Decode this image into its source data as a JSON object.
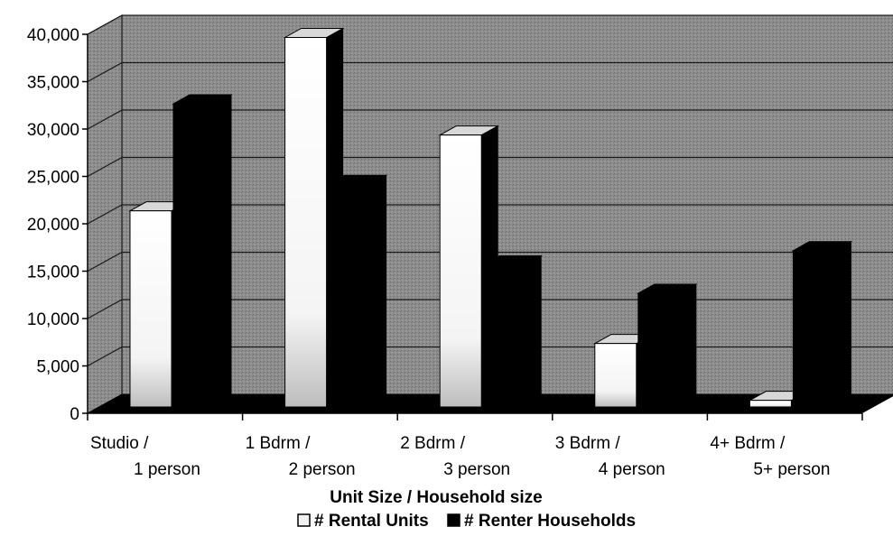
{
  "chart_data": {
    "type": "bar",
    "style": "3d-clustered-column",
    "categories": [
      [
        "Studio /",
        "1 person"
      ],
      [
        "1 Bdrm /",
        "2 person"
      ],
      [
        "2 Bdrm /",
        "3 person"
      ],
      [
        "3 Bdrm /",
        "4 person"
      ],
      [
        "4+ Bdrm /",
        "5+ person"
      ]
    ],
    "series": [
      {
        "name": "# Rental Units",
        "values": [
          20700,
          39000,
          28700,
          6700,
          700
        ],
        "color": "#f2f2f2"
      },
      {
        "name": "# Renter Households",
        "values": [
          32000,
          23500,
          15000,
          12000,
          16500
        ],
        "color": "#000000"
      }
    ],
    "xlabel": "Unit Size / Household size",
    "ylabel": "",
    "ylim": [
      0,
      40000
    ],
    "yticks": [
      0,
      5000,
      10000,
      15000,
      20000,
      25000,
      30000,
      35000,
      40000
    ],
    "ytick_labels": [
      "0",
      "5,000",
      "10,000",
      "15,000",
      "20,000",
      "25,000",
      "30,000",
      "35,000",
      "40,000"
    ],
    "grid": true,
    "legend": "bottom",
    "colors": {
      "wall": "#8c8c8c",
      "floor": "#000000",
      "gridline": "#1a1a1a"
    }
  }
}
